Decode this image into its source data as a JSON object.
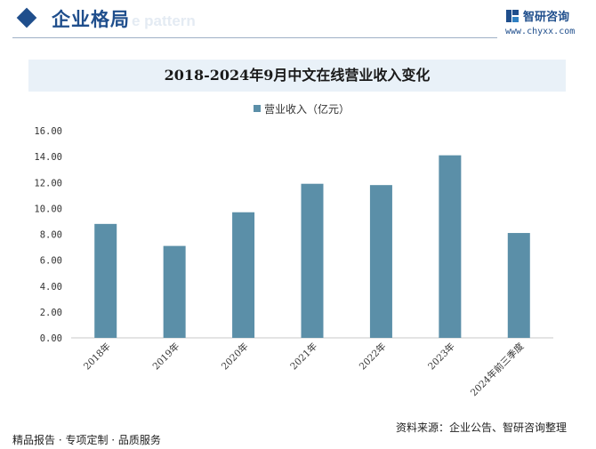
{
  "header": {
    "section_title": "企业格局",
    "watermark_text": "e pattern",
    "brand_name": "智研咨询",
    "brand_url": "www.chyxx.com"
  },
  "footer": {
    "left_text": "精品报告 · 专项定制 · 品质服务",
    "source_text": "资料来源：企业公告、智研咨询整理"
  },
  "colors": {
    "bar": "#5b8fa8",
    "header_accent": "#1f4e8c",
    "title_band": "#e9f1f8"
  },
  "chart_data": {
    "type": "bar",
    "title": "2018-2024年9月中文在线营业收入变化",
    "categories": [
      "2018年",
      "2019年",
      "2020年",
      "2021年",
      "2022年",
      "2023年",
      "2024年前三季度"
    ],
    "series": [
      {
        "name": "营业收入（亿元）",
        "values": [
          8.8,
          7.1,
          9.7,
          11.9,
          11.8,
          14.1,
          8.1
        ]
      }
    ],
    "ylim": [
      0,
      16
    ],
    "yticks": [
      "0.00",
      "2.00",
      "4.00",
      "6.00",
      "8.00",
      "10.00",
      "12.00",
      "14.00",
      "16.00"
    ],
    "legend_position": "top",
    "grid": false
  }
}
